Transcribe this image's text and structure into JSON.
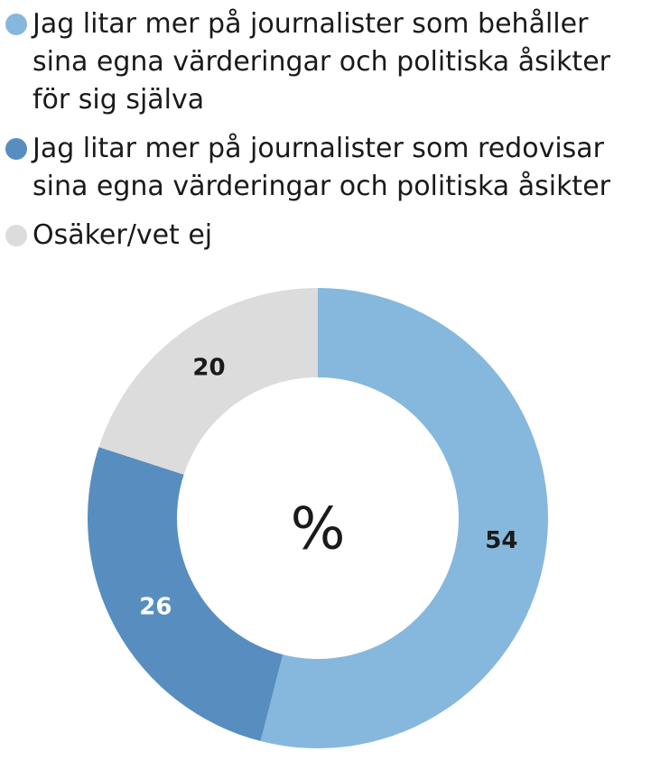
{
  "chart_data": {
    "type": "pie",
    "variant": "donut",
    "center_label": "%",
    "legend_position": "top",
    "series": [
      {
        "name": "Jag litar mer på journalister som behåller\nsina egna värderingar och politiska åsikter\nför sig själva",
        "value": 54,
        "color": "#86b8dd",
        "label_color": "#1a1a1a"
      },
      {
        "name": "Jag litar mer på journalister som redovisar\nsina egna värderingar och politiska åsikter",
        "value": 26,
        "color": "#578ebf",
        "label_color": "#ffffff"
      },
      {
        "name": "Osäker/vet ej",
        "value": 20,
        "color": "#dcdcdc",
        "label_color": "#1a1a1a"
      }
    ]
  }
}
